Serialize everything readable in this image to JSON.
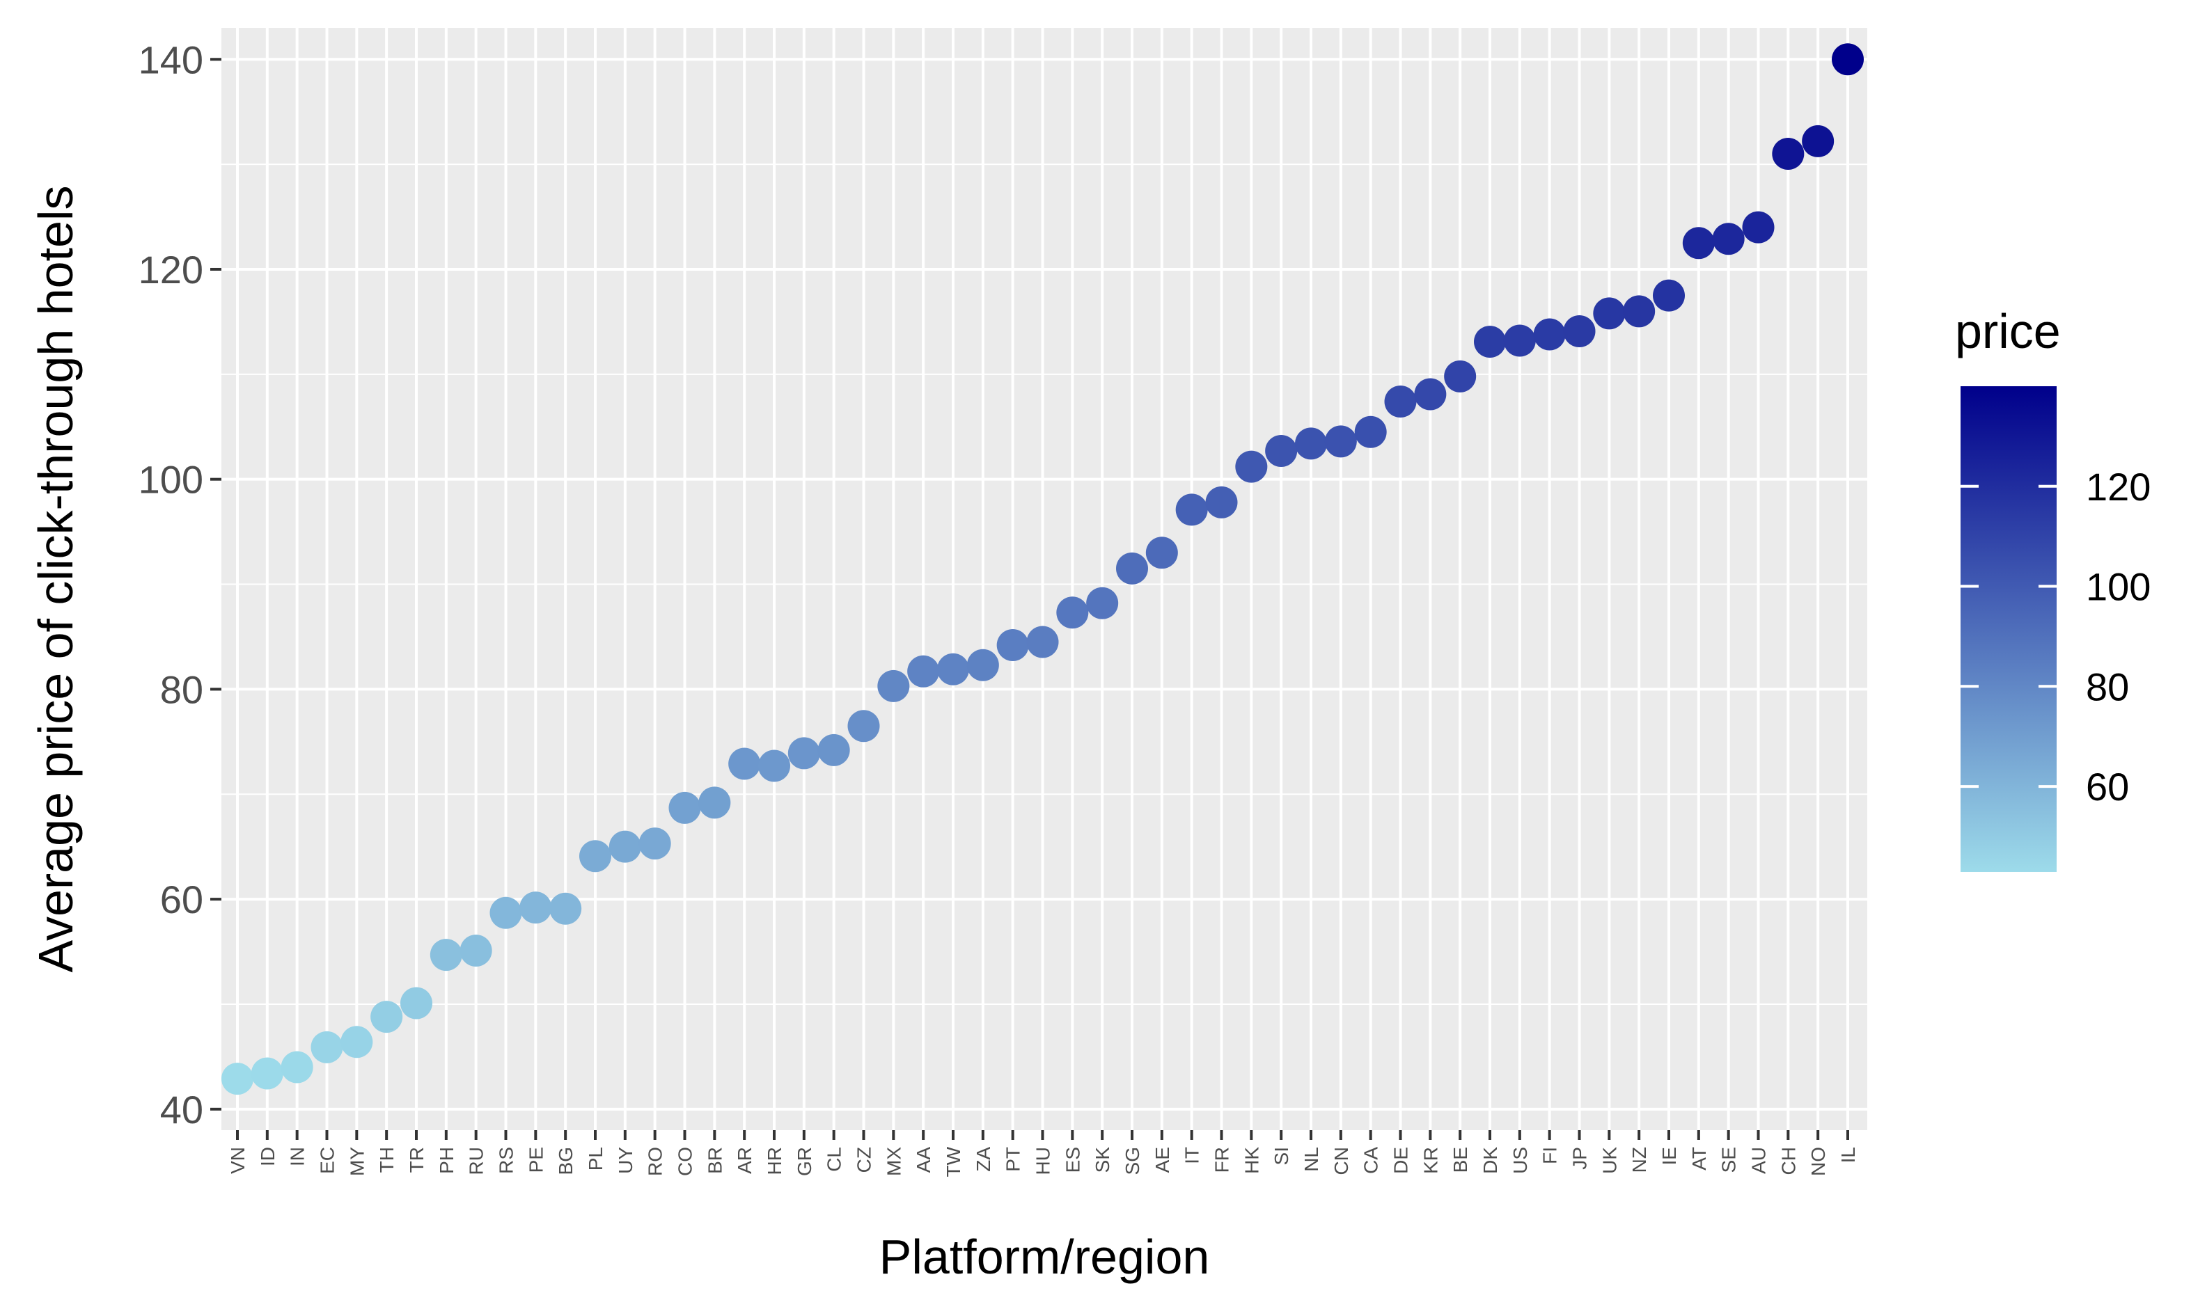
{
  "chart_data": {
    "type": "scatter",
    "xlabel": "Platform/region",
    "ylabel": "Average price of click-through hotels",
    "ylim": [
      38,
      143
    ],
    "y_ticks": [
      40,
      60,
      80,
      100,
      120,
      140
    ],
    "grid": true,
    "legend": {
      "title": "price",
      "placement": "right",
      "ticks": [
        60,
        80,
        100,
        120
      ],
      "low_color": "#9ddbea",
      "high_color": "#00008b",
      "range": [
        42.9,
        140
      ]
    },
    "categories": [
      "VN",
      "ID",
      "IN",
      "EC",
      "MY",
      "TH",
      "TR",
      "PH",
      "RU",
      "RS",
      "PE",
      "BG",
      "PL",
      "UY",
      "RO",
      "CO",
      "BR",
      "AR",
      "HR",
      "GR",
      "CL",
      "CZ",
      "MX",
      "AA",
      "TW",
      "ZA",
      "PT",
      "HU",
      "ES",
      "SK",
      "SG",
      "AE",
      "IT",
      "FR",
      "HK",
      "SI",
      "NL",
      "CN",
      "CA",
      "DE",
      "KR",
      "BE",
      "DK",
      "US",
      "FI",
      "JP",
      "UK",
      "NZ",
      "IE",
      "AT",
      "SE",
      "AU",
      "CH",
      "NO",
      "IL"
    ],
    "values": [
      42.9,
      43.4,
      44.0,
      45.9,
      46.4,
      48.8,
      50.1,
      54.7,
      55.1,
      58.7,
      59.2,
      59.1,
      64.1,
      65.0,
      65.3,
      68.7,
      69.2,
      72.9,
      72.7,
      73.9,
      74.2,
      76.5,
      80.3,
      81.7,
      81.9,
      82.3,
      84.2,
      84.5,
      87.3,
      88.2,
      91.5,
      93.0,
      97.1,
      97.8,
      101.2,
      102.7,
      103.4,
      103.6,
      104.5,
      107.4,
      108.1,
      109.8,
      113.1,
      113.2,
      113.8,
      114.1,
      115.8,
      116.0,
      117.5,
      122.5,
      122.9,
      124.0,
      131.0,
      132.2,
      140.0
    ]
  }
}
